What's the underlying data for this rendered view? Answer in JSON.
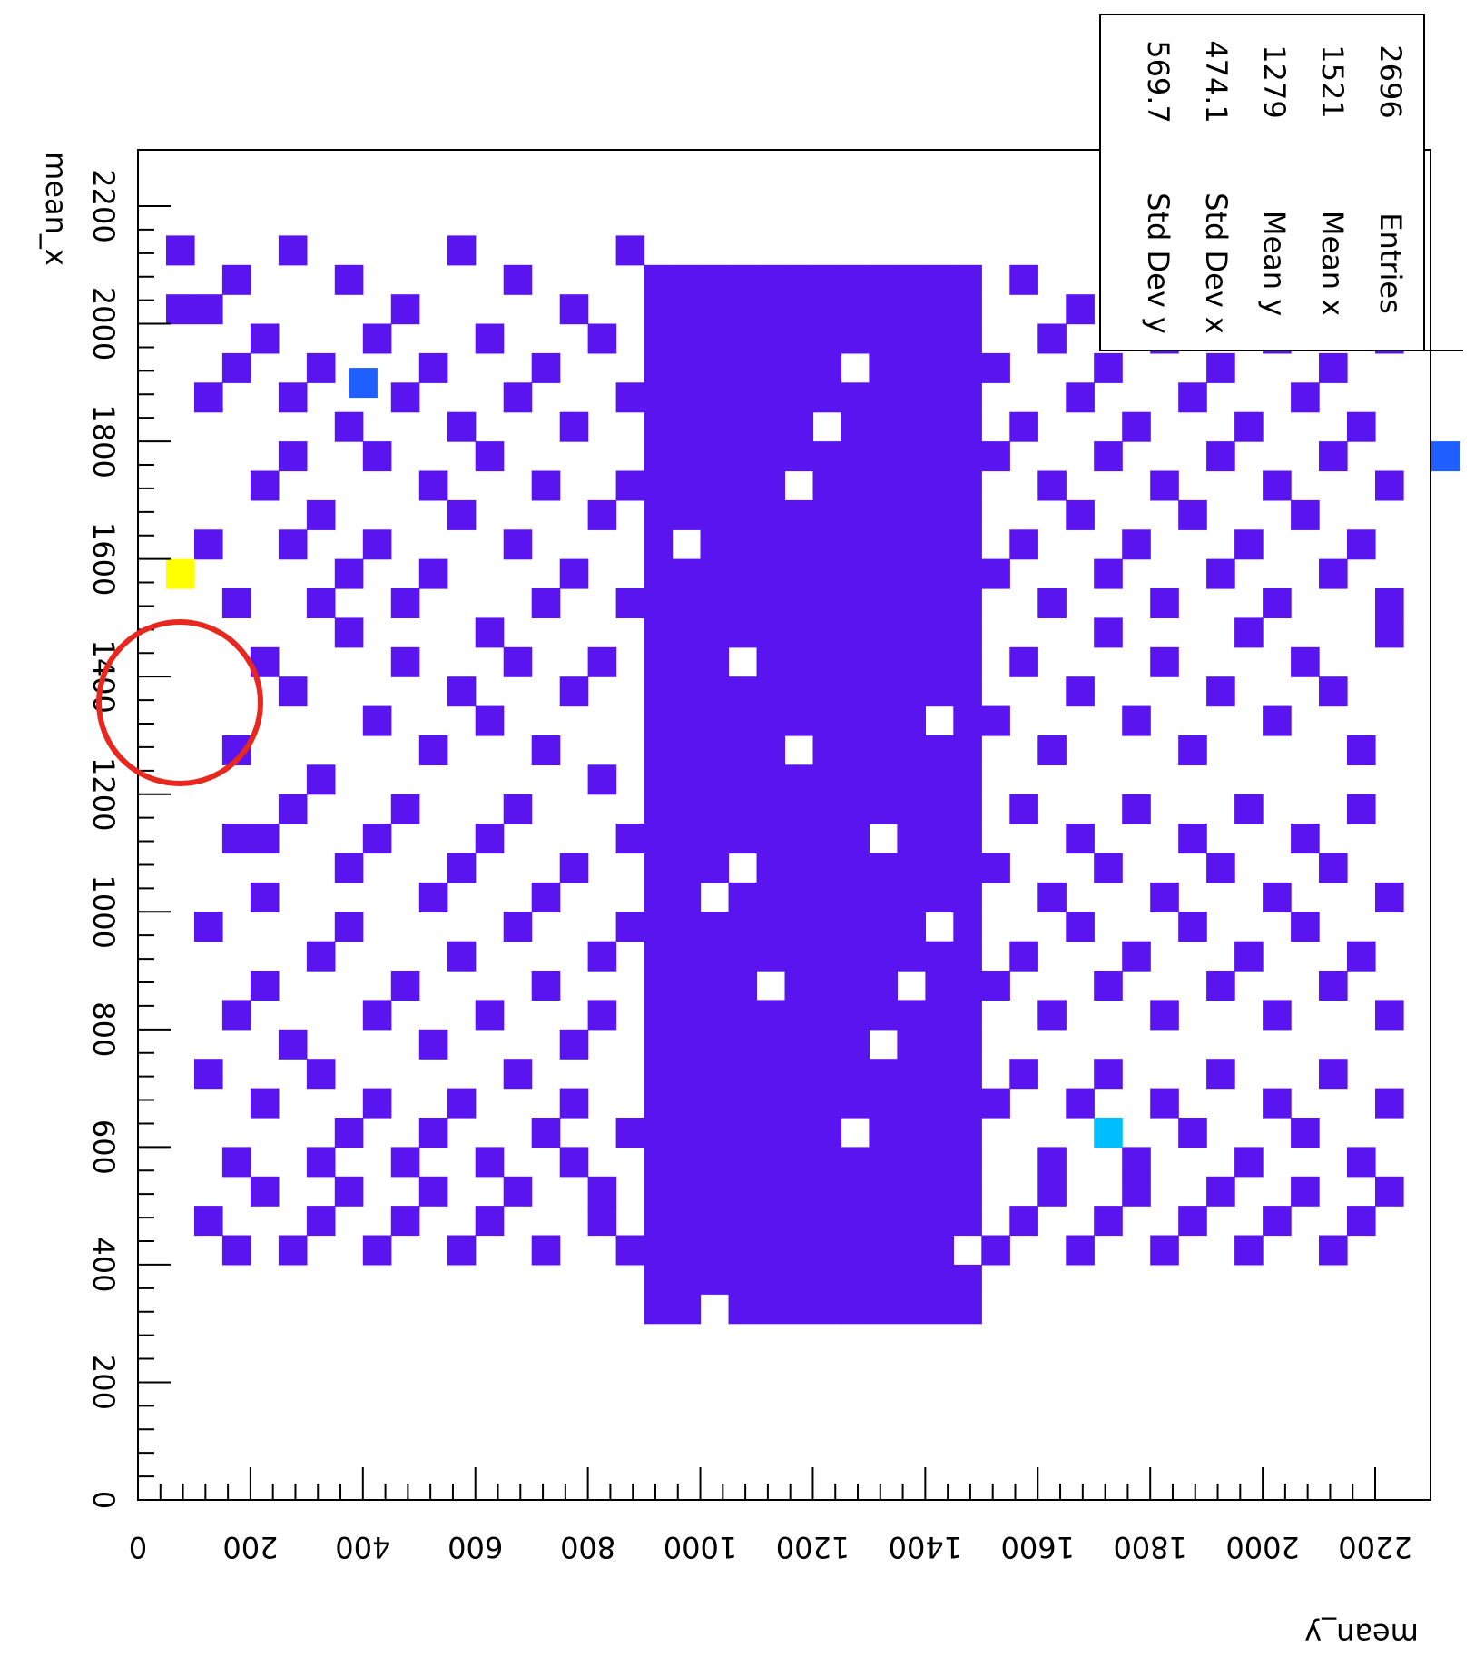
{
  "chart_data": {
    "type": "heatmap",
    "title": "",
    "xlabel": "mean_x",
    "ylabel": "mean_y",
    "xlim": [
      0,
      2300
    ],
    "ylim": [
      0,
      2300
    ],
    "x_ticks": [
      "0",
      "200",
      "400",
      "600",
      "800",
      "1000",
      "1200",
      "1400",
      "1600",
      "1800",
      "2000",
      "2200"
    ],
    "y_ticks": [
      "0",
      "200",
      "400",
      "600",
      "800",
      "1000",
      "1200",
      "1400",
      "1600",
      "1800",
      "2000",
      "2200"
    ],
    "stats": [
      {
        "label": "Entries",
        "value": "2696"
      },
      {
        "label": "Mean x",
        "value": "1521"
      },
      {
        "label": "Mean y",
        "value": "1279"
      },
      {
        "label": "Std Dev x",
        "value": "474.1"
      },
      {
        "label": "Std Dev y",
        "value": "569.7"
      }
    ],
    "bin_size": 50,
    "base_color": "#5a14f0",
    "dense_band": {
      "y_range": [
        900,
        1500
      ],
      "x_range": [
        300,
        2100
      ],
      "count": 1
    },
    "hotspots": [
      {
        "x": 1575,
        "y": 75,
        "count": 6,
        "color": "#ffff00"
      },
      {
        "x": 625,
        "y": 1725,
        "count": 4,
        "color": "#00bfff"
      },
      {
        "x": 1900,
        "y": 400,
        "count": 2,
        "color": "#1f5fff"
      },
      {
        "x": 1775,
        "y": 2325,
        "count": 2,
        "color": "#1f5fff"
      }
    ],
    "scatter_cells": [
      [
        2025,
        75
      ],
      [
        2125,
        75
      ],
      [
        1875,
        125
      ],
      [
        2025,
        125
      ],
      [
        1625,
        125
      ],
      [
        725,
        125
      ],
      [
        975,
        125
      ],
      [
        475,
        125
      ],
      [
        1925,
        175
      ],
      [
        2075,
        175
      ],
      [
        1525,
        175
      ],
      [
        1275,
        175
      ],
      [
        825,
        175
      ],
      [
        425,
        175
      ],
      [
        575,
        175
      ],
      [
        1125,
        175
      ],
      [
        1975,
        225
      ],
      [
        1725,
        225
      ],
      [
        1425,
        225
      ],
      [
        1125,
        225
      ],
      [
        1025,
        225
      ],
      [
        875,
        225
      ],
      [
        525,
        225
      ],
      [
        675,
        225
      ],
      [
        2125,
        275
      ],
      [
        1875,
        275
      ],
      [
        1775,
        275
      ],
      [
        1625,
        275
      ],
      [
        1375,
        275
      ],
      [
        1175,
        275
      ],
      [
        775,
        275
      ],
      [
        425,
        275
      ],
      [
        1925,
        325
      ],
      [
        1675,
        325
      ],
      [
        1525,
        325
      ],
      [
        1225,
        325
      ],
      [
        925,
        325
      ],
      [
        725,
        325
      ],
      [
        575,
        325
      ],
      [
        475,
        325
      ],
      [
        2075,
        375
      ],
      [
        1825,
        375
      ],
      [
        1575,
        375
      ],
      [
        1475,
        375
      ],
      [
        1075,
        375
      ],
      [
        975,
        375
      ],
      [
        625,
        375
      ],
      [
        525,
        375
      ],
      [
        1975,
        425
      ],
      [
        1775,
        425
      ],
      [
        1625,
        425
      ],
      [
        1325,
        425
      ],
      [
        1125,
        425
      ],
      [
        825,
        425
      ],
      [
        675,
        425
      ],
      [
        425,
        425
      ],
      [
        2025,
        475
      ],
      [
        1875,
        475
      ],
      [
        1525,
        475
      ],
      [
        1425,
        475
      ],
      [
        1175,
        475
      ],
      [
        875,
        475
      ],
      [
        575,
        475
      ],
      [
        475,
        475
      ],
      [
        1925,
        525
      ],
      [
        1725,
        525
      ],
      [
        1575,
        525
      ],
      [
        1275,
        525
      ],
      [
        1025,
        525
      ],
      [
        775,
        525
      ],
      [
        625,
        525
      ],
      [
        525,
        525
      ],
      [
        2125,
        575
      ],
      [
        1825,
        575
      ],
      [
        1675,
        575
      ],
      [
        1375,
        575
      ],
      [
        1075,
        575
      ],
      [
        925,
        575
      ],
      [
        675,
        575
      ],
      [
        425,
        575
      ],
      [
        1975,
        625
      ],
      [
        1775,
        625
      ],
      [
        1475,
        625
      ],
      [
        1325,
        625
      ],
      [
        1125,
        625
      ],
      [
        825,
        625
      ],
      [
        575,
        625
      ],
      [
        475,
        625
      ],
      [
        2075,
        675
      ],
      [
        1875,
        675
      ],
      [
        1625,
        675
      ],
      [
        1425,
        675
      ],
      [
        1175,
        675
      ],
      [
        975,
        675
      ],
      [
        725,
        675
      ],
      [
        525,
        675
      ],
      [
        1925,
        725
      ],
      [
        1725,
        725
      ],
      [
        1525,
        725
      ],
      [
        1275,
        725
      ],
      [
        1025,
        725
      ],
      [
        875,
        725
      ],
      [
        625,
        725
      ],
      [
        425,
        725
      ],
      [
        2025,
        775
      ],
      [
        1825,
        775
      ],
      [
        1575,
        775
      ],
      [
        1375,
        775
      ],
      [
        1075,
        775
      ],
      [
        775,
        775
      ],
      [
        675,
        775
      ],
      [
        575,
        775
      ],
      [
        1975,
        825
      ],
      [
        1675,
        825
      ],
      [
        1425,
        825
      ],
      [
        1225,
        825
      ],
      [
        925,
        825
      ],
      [
        825,
        825
      ],
      [
        525,
        825
      ],
      [
        475,
        825
      ],
      [
        2125,
        875
      ],
      [
        1875,
        875
      ],
      [
        1725,
        875
      ],
      [
        1525,
        875
      ],
      [
        1125,
        875
      ],
      [
        975,
        875
      ],
      [
        625,
        875
      ],
      [
        425,
        875
      ],
      [
        1925,
        1525
      ],
      [
        1775,
        1525
      ],
      [
        1575,
        1525
      ],
      [
        1325,
        1525
      ],
      [
        1075,
        1525
      ],
      [
        875,
        1525
      ],
      [
        675,
        1525
      ],
      [
        425,
        1525
      ],
      [
        2075,
        1575
      ],
      [
        1825,
        1575
      ],
      [
        1625,
        1575
      ],
      [
        1425,
        1575
      ],
      [
        1175,
        1575
      ],
      [
        925,
        1575
      ],
      [
        725,
        1575
      ],
      [
        475,
        1575
      ],
      [
        1975,
        1625
      ],
      [
        1725,
        1625
      ],
      [
        1525,
        1625
      ],
      [
        1275,
        1625
      ],
      [
        1025,
        1625
      ],
      [
        825,
        1625
      ],
      [
        575,
        1625
      ],
      [
        525,
        1625
      ],
      [
        2025,
        1675
      ],
      [
        1875,
        1675
      ],
      [
        1675,
        1675
      ],
      [
        1375,
        1675
      ],
      [
        1125,
        1675
      ],
      [
        975,
        1675
      ],
      [
        675,
        1675
      ],
      [
        425,
        1675
      ],
      [
        1925,
        1725
      ],
      [
        1775,
        1725
      ],
      [
        1575,
        1725
      ],
      [
        1475,
        1725
      ],
      [
        1075,
        1725
      ],
      [
        875,
        1725
      ],
      [
        725,
        1725
      ],
      [
        475,
        1725
      ],
      [
        2125,
        1775
      ],
      [
        1825,
        1775
      ],
      [
        1625,
        1775
      ],
      [
        1325,
        1775
      ],
      [
        1175,
        1775
      ],
      [
        925,
        1775
      ],
      [
        575,
        1775
      ],
      [
        525,
        1775
      ],
      [
        1975,
        1825
      ],
      [
        1725,
        1825
      ],
      [
        1525,
        1825
      ],
      [
        1425,
        1825
      ],
      [
        1025,
        1825
      ],
      [
        825,
        1825
      ],
      [
        675,
        1825
      ],
      [
        425,
        1825
      ],
      [
        2075,
        1875
      ],
      [
        1875,
        1875
      ],
      [
        1675,
        1875
      ],
      [
        1275,
        1875
      ],
      [
        1125,
        1875
      ],
      [
        975,
        1875
      ],
      [
        625,
        1875
      ],
      [
        475,
        1875
      ],
      [
        1925,
        1925
      ],
      [
        1775,
        1925
      ],
      [
        1575,
        1925
      ],
      [
        1375,
        1925
      ],
      [
        1075,
        1925
      ],
      [
        875,
        1925
      ],
      [
        725,
        1925
      ],
      [
        525,
        1925
      ],
      [
        2025,
        1975
      ],
      [
        1825,
        1975
      ],
      [
        1625,
        1975
      ],
      [
        1475,
        1975
      ],
      [
        1175,
        1975
      ],
      [
        925,
        1975
      ],
      [
        575,
        1975
      ],
      [
        425,
        1975
      ],
      [
        1975,
        2025
      ],
      [
        1725,
        2025
      ],
      [
        1525,
        2025
      ],
      [
        1325,
        2025
      ],
      [
        1025,
        2025
      ],
      [
        825,
        2025
      ],
      [
        675,
        2025
      ],
      [
        475,
        2025
      ],
      [
        2125,
        2075
      ],
      [
        1875,
        2075
      ],
      [
        1675,
        2075
      ],
      [
        1425,
        2075
      ],
      [
        1125,
        2075
      ],
      [
        975,
        2075
      ],
      [
        625,
        2075
      ],
      [
        525,
        2075
      ],
      [
        1925,
        2125
      ],
      [
        1775,
        2125
      ],
      [
        1575,
        2125
      ],
      [
        1375,
        2125
      ],
      [
        1075,
        2125
      ],
      [
        875,
        2125
      ],
      [
        725,
        2125
      ],
      [
        425,
        2125
      ],
      [
        2025,
        2175
      ],
      [
        1825,
        2175
      ],
      [
        1625,
        2175
      ],
      [
        1275,
        2175
      ],
      [
        1175,
        2175
      ],
      [
        925,
        2175
      ],
      [
        575,
        2175
      ],
      [
        475,
        2175
      ],
      [
        1975,
        2225
      ],
      [
        1725,
        2225
      ],
      [
        1525,
        2225
      ],
      [
        1475,
        2225
      ],
      [
        1025,
        2225
      ],
      [
        825,
        2225
      ],
      [
        675,
        2225
      ],
      [
        525,
        2225
      ]
    ]
  }
}
